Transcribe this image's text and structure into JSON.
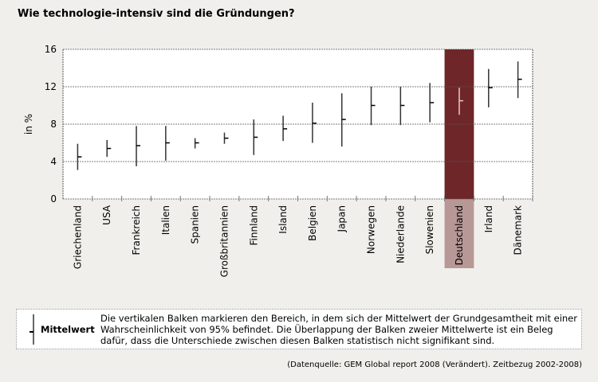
{
  "title": "Wie technologie-intensiv sind die Gründungen?",
  "chart_data": {
    "type": "error-bar",
    "title": "Wie technologie-intensiv sind die Gründungen?",
    "ylabel": "in %",
    "ylim": [
      0,
      16
    ],
    "yticks": [
      "0",
      "4",
      "8",
      "12",
      "16"
    ],
    "grid": true,
    "highlight": "Deutschland",
    "highlight_color": "#6e2629",
    "highlight_label_color": "#b89896",
    "categories": [
      "Griechenland",
      "USA",
      "Frankreich",
      "Italien",
      "Spanien",
      "Großbritannien",
      "Finnland",
      "Island",
      "Belgien",
      "Japan",
      "Norwegen",
      "Niederlande",
      "Slowenien",
      "Deutschland",
      "Irland",
      "Dänemark"
    ],
    "mean": [
      4.5,
      5.4,
      5.7,
      6.0,
      6.0,
      6.5,
      6.6,
      7.5,
      8.1,
      8.5,
      10.0,
      10.0,
      10.3,
      10.5,
      11.9,
      12.8
    ],
    "lower": [
      3.1,
      4.5,
      3.5,
      4.1,
      5.4,
      5.9,
      4.7,
      6.2,
      6.0,
      5.6,
      7.9,
      7.9,
      8.2,
      9.0,
      9.8,
      10.8
    ],
    "upper": [
      5.9,
      6.3,
      7.8,
      7.8,
      6.5,
      7.1,
      8.5,
      8.9,
      10.3,
      11.3,
      12.0,
      12.0,
      12.4,
      11.9,
      13.9,
      14.7
    ]
  },
  "legend": {
    "label": "Mittelwert",
    "text": "Die vertikalen Balken markieren den Bereich, in dem sich der Mittelwert der Grundgesamtheit mit einer Wahrscheinlichkeit von 95% befindet. Die Überlappung der Balken zweier Mittelwerte ist ein Beleg dafür, dass die Unterschiede zwischen diesen Balken statistisch nicht signifikant sind."
  },
  "source": "(Datenquelle: GEM Global report 2008 (Verändert). Zeitbezug 2002-2008)"
}
